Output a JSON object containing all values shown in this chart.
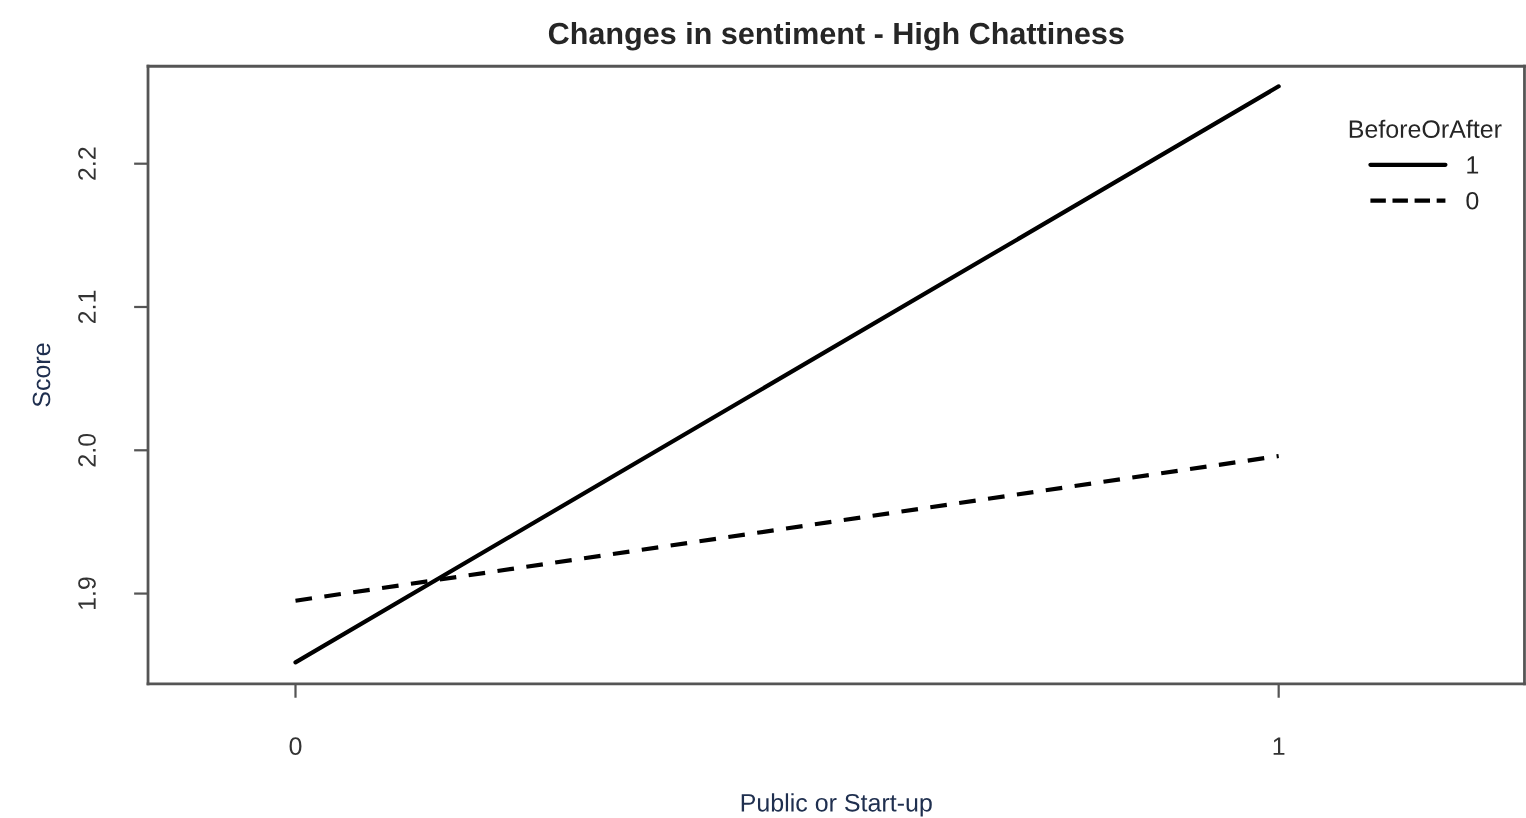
{
  "chart_data": {
    "type": "line",
    "title": "Changes in sentiment - High Chattiness",
    "xlabel": "Public or Start-up",
    "ylabel": "Score",
    "legend_title": "BeforeOrAfter",
    "x": [
      0,
      1
    ],
    "xlim": [
      -0.15,
      1.25
    ],
    "xticks": [
      0,
      1
    ],
    "series": [
      {
        "name": "1",
        "color": "#000000",
        "line_style": "solid",
        "values": [
          1.852,
          2.254
        ]
      },
      {
        "name": "0",
        "color": "#000000",
        "line_style": "dashed",
        "values": [
          1.895,
          1.996
        ]
      }
    ],
    "ylim": [
      1.837,
      2.268
    ],
    "yticks": [
      1.9,
      {
        "value": 2.0,
        "label": "2.0"
      },
      2.1,
      2.2
    ],
    "legend": "top right",
    "grid": false,
    "marker": "none"
  }
}
